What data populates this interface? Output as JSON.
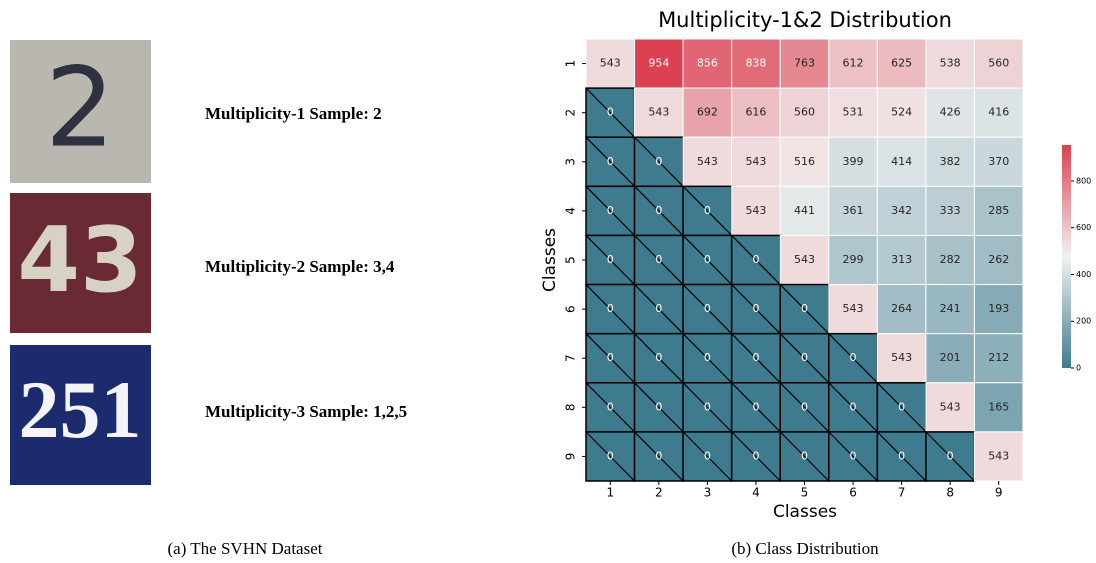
{
  "figure": {
    "samples": [
      {
        "image_text": "2",
        "caption": "Multiplicity-1 Sample: 2"
      },
      {
        "image_text": "43",
        "caption": "Multiplicity-2 Sample: 3,4"
      },
      {
        "image_text": "251",
        "caption": "Multiplicity-3 Sample: 1,2,5"
      }
    ],
    "left_caption": "(a) The SVHN Dataset",
    "right_caption": "(b) Class Distribution"
  },
  "chart_data": {
    "type": "heatmap",
    "title": "Multiplicity-1&2 Distribution",
    "xlabel": "Classes",
    "ylabel": "Classes",
    "x": [
      "1",
      "2",
      "3",
      "4",
      "5",
      "6",
      "7",
      "8",
      "9"
    ],
    "y": [
      "1",
      "2",
      "3",
      "4",
      "5",
      "6",
      "7",
      "8",
      "9"
    ],
    "values": [
      [
        543,
        954,
        856,
        838,
        763,
        612,
        625,
        538,
        560
      ],
      [
        0,
        543,
        692,
        616,
        560,
        531,
        524,
        426,
        416
      ],
      [
        0,
        0,
        543,
        543,
        516,
        399,
        414,
        382,
        370
      ],
      [
        0,
        0,
        0,
        543,
        441,
        361,
        342,
        333,
        285
      ],
      [
        0,
        0,
        0,
        0,
        543,
        299,
        313,
        282,
        262
      ],
      [
        0,
        0,
        0,
        0,
        0,
        543,
        264,
        241,
        193
      ],
      [
        0,
        0,
        0,
        0,
        0,
        0,
        543,
        201,
        212
      ],
      [
        0,
        0,
        0,
        0,
        0,
        0,
        0,
        543,
        165
      ],
      [
        0,
        0,
        0,
        0,
        0,
        0,
        0,
        0,
        543
      ]
    ],
    "colormap": [
      "#3e7b8e",
      "#f2f2f2",
      "#dc4151"
    ],
    "clim": [
      0,
      954
    ],
    "cticks": [
      0,
      200,
      400,
      600,
      800
    ]
  }
}
